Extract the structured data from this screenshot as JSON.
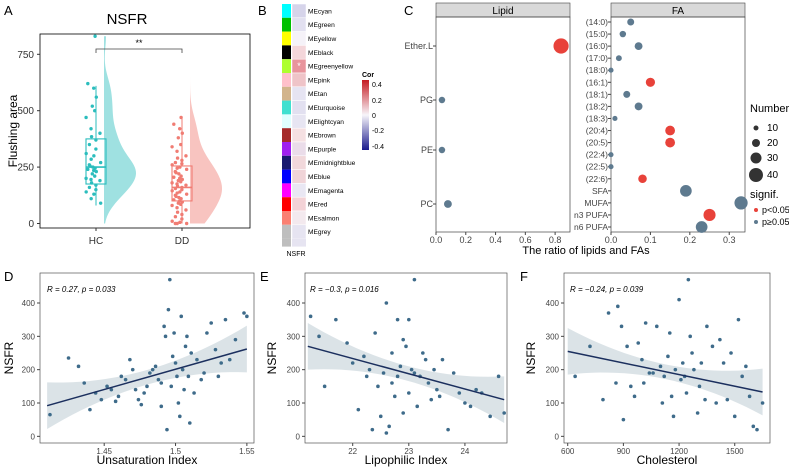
{
  "figure": {
    "panel_labels": [
      "A",
      "B",
      "C",
      "D",
      "E",
      "F"
    ],
    "panelA": {
      "title": "NSFR",
      "ylabel": "Flushing area",
      "groups": [
        "HC",
        "DD"
      ],
      "significance": "**",
      "colors": {
        "HC": "#2BBDBD",
        "DD": "#F07C73"
      }
    },
    "panelB": {
      "modules": [
        "MEcyan",
        "MEgreen",
        "MEyellow",
        "MEblack",
        "MEgreenyellow",
        "MEpink",
        "MEtan",
        "MEturquoise",
        "MElightcyan",
        "MEbrown",
        "MEpurple",
        "MEmidnightblue",
        "MEblue",
        "MEmagenta",
        "MEred",
        "MEsalmon",
        "MEgrey"
      ],
      "module_colors": [
        "#00FFFF",
        "#00C000",
        "#FFFF00",
        "#000000",
        "#ADFF2F",
        "#FFC0CB",
        "#D2B48C",
        "#40E0D0",
        "#E0FFFF",
        "#A52A2A",
        "#A020F0",
        "#191970",
        "#0000FF",
        "#FF00FF",
        "#FF0000",
        "#FA8072",
        "#BEBEBE"
      ],
      "heat_colors": [
        "#D6D4EA",
        "#E2E0F0",
        "#F5F2F8",
        "#F4D6DA",
        "#E8949C",
        "#EFC4C8",
        "#E6E4F2",
        "#E2E0F0",
        "#E7E5F2",
        "#F5E0E2",
        "#EADCE9",
        "#F1D8DB",
        "#F0D4D8",
        "#E9E7F3",
        "#F3D2D6",
        "#F3E9EE",
        "#E6E4F1"
      ],
      "star": "*",
      "xlabel": "NSFR",
      "legend_title": "Cor",
      "legend_ticks": [
        "0.4",
        "0.2",
        "0",
        "-0.2",
        "-0.4"
      ]
    },
    "panelC": {
      "facet_left": "Lipid",
      "facet_right": "FA",
      "xlabel": "The ratio of lipids and FAs",
      "x_ticks": [
        "0.0",
        "0.2",
        "0.4",
        "0.6",
        "0.8"
      ],
      "right_ticks": [
        "0.0",
        "0.1",
        "0.2",
        "0.3"
      ],
      "legend_number_title": "Number",
      "legend_number_values": [
        "10",
        "20",
        "30",
        "40"
      ],
      "legend_signif_title": "signif.",
      "legend_signif_labels": [
        "p<0.05",
        "p≥0.05"
      ]
    },
    "panelD": {
      "annotation": "R = 0.27, p = 0.033",
      "xlabel": "Unsaturation Index",
      "ylabel": "NSFR"
    },
    "panelE": {
      "annotation": "R = −0.3, p = 0.016",
      "xlabel": "Lipophilic Index",
      "ylabel": "NSFR"
    },
    "panelF": {
      "annotation": "R = −0.24, p = 0.039",
      "xlabel": "Cholesterol",
      "ylabel": "NSFR"
    }
  },
  "chart_data": [
    {
      "id": "A",
      "type": "box-violin-dot",
      "title": "NSFR",
      "ylabel": "Flushing area",
      "categories": [
        "HC",
        "DD"
      ],
      "ylim": [
        -20,
        840
      ],
      "yticks": [
        0,
        250,
        500,
        750
      ],
      "box": [
        {
          "name": "HC",
          "q1": 175,
          "median": 250,
          "q3": 375,
          "lo": 80,
          "hi": 610
        },
        {
          "name": "DD",
          "q1": 100,
          "median": 160,
          "q3": 255,
          "lo": 0,
          "hi": 470
        }
      ],
      "points": [
        {
          "name": "HC",
          "values": [
            830,
            620,
            600,
            560,
            520,
            500,
            470,
            420,
            400,
            385,
            370,
            350,
            330,
            310,
            300,
            285,
            270,
            260,
            255,
            250,
            245,
            240,
            235,
            230,
            220,
            210,
            200,
            195,
            190,
            180,
            170,
            160,
            150,
            140,
            130,
            110,
            90
          ]
        },
        {
          "name": "DD",
          "values": [
            470,
            440,
            420,
            400,
            380,
            350,
            340,
            320,
            300,
            290,
            280,
            270,
            265,
            260,
            250,
            245,
            240,
            230,
            225,
            220,
            210,
            205,
            200,
            195,
            190,
            185,
            180,
            175,
            170,
            165,
            160,
            155,
            150,
            145,
            140,
            135,
            130,
            125,
            120,
            115,
            110,
            105,
            100,
            95,
            90,
            85,
            80,
            70,
            60,
            50,
            40,
            30,
            20,
            10,
            5,
            0,
            0,
            0
          ]
        }
      ]
    },
    {
      "id": "B",
      "type": "heatmap",
      "rows": [
        "MEcyan",
        "MEgreen",
        "MEyellow",
        "MEblack",
        "MEgreenyellow",
        "MEpink",
        "MEtan",
        "MEturquoise",
        "MElightcyan",
        "MEbrown",
        "MEpurple",
        "MEmidnightblue",
        "MEblue",
        "MEmagenta",
        "MEred",
        "MEsalmon",
        "MEgrey"
      ],
      "columns": [
        "NSFR"
      ],
      "values": [
        -0.12,
        -0.08,
        0.02,
        0.1,
        0.3,
        0.15,
        -0.07,
        -0.08,
        -0.06,
        0.05,
        -0.02,
        0.08,
        0.1,
        -0.05,
        0.11,
        0.03,
        -0.06
      ],
      "zlim": [
        -0.4,
        0.4
      ]
    },
    {
      "id": "C",
      "type": "dot",
      "facets": [
        "Lipid",
        "FA"
      ],
      "xlabel": "The ratio of lipids and FAs",
      "lipid": {
        "categories": [
          "Ether.L",
          "PG",
          "PE",
          "PC"
        ],
        "x": [
          0.84,
          0.04,
          0.04,
          0.08
        ],
        "number": [
          40,
          3,
          3,
          6
        ],
        "signif": [
          "p<0.05",
          "p≥0.05",
          "p≥0.05",
          "p≥0.05"
        ],
        "xlim": [
          0,
          0.9
        ]
      },
      "fa": {
        "categories": [
          "(14:0)",
          "(15:0)",
          "(16:0)",
          "(17:0)",
          "(18:0)",
          "(16:1)",
          "(18:1)",
          "(18:2)",
          "(18:3)",
          "(20:4)",
          "(20:5)",
          "(22:4)",
          "(22:5)",
          "(22:6)",
          "SFA",
          "MUFA",
          "n3 PUFA",
          "n6 PUFA"
        ],
        "x": [
          0.05,
          0.03,
          0.07,
          0.02,
          0.0,
          0.1,
          0.04,
          0.07,
          0.01,
          0.15,
          0.15,
          0.0,
          0.0,
          0.08,
          0.19,
          0.33,
          0.25,
          0.23
        ],
        "number": [
          4,
          3,
          6,
          2,
          1,
          10,
          4,
          6,
          1,
          12,
          12,
          1,
          1,
          8,
          20,
          28,
          22,
          20
        ],
        "signif": [
          "p≥0.05",
          "p≥0.05",
          "p≥0.05",
          "p≥0.05",
          "p≥0.05",
          "p<0.05",
          "p≥0.05",
          "p≥0.05",
          "p≥0.05",
          "p<0.05",
          "p<0.05",
          "p≥0.05",
          "p≥0.05",
          "p<0.05",
          "p≥0.05",
          "p≥0.05",
          "p<0.05",
          "p≥0.05"
        ],
        "xlim": [
          0,
          0.34
        ]
      }
    },
    {
      "id": "D",
      "type": "scatter",
      "xlabel": "Unsaturation Index",
      "ylabel": "NSFR",
      "xlim": [
        1.405,
        1.555
      ],
      "ylim": [
        -20,
        490
      ],
      "xticks": [
        1.45,
        1.5,
        1.55
      ],
      "yticks": [
        0,
        100,
        200,
        300,
        400
      ],
      "fit": {
        "x": [
          1.41,
          1.55
        ],
        "y": [
          92,
          262
        ]
      },
      "x": [
        1.412,
        1.425,
        1.432,
        1.436,
        1.44,
        1.444,
        1.448,
        1.452,
        1.455,
        1.458,
        1.46,
        1.462,
        1.465,
        1.468,
        1.47,
        1.472,
        1.474,
        1.476,
        1.478,
        1.48,
        1.482,
        1.484,
        1.486,
        1.488,
        1.49,
        1.49,
        1.492,
        1.493,
        1.494,
        1.495,
        1.496,
        1.497,
        1.498,
        1.499,
        1.5,
        1.501,
        1.502,
        1.503,
        1.504,
        1.505,
        1.506,
        1.507,
        1.508,
        1.509,
        1.51,
        1.511,
        1.513,
        1.515,
        1.518,
        1.52,
        1.522,
        1.525,
        1.528,
        1.53,
        1.532,
        1.535,
        1.538,
        1.542,
        1.548,
        1.55
      ],
      "y": [
        65,
        235,
        210,
        160,
        80,
        130,
        110,
        150,
        140,
        105,
        120,
        180,
        170,
        230,
        200,
        140,
        110,
        95,
        130,
        150,
        190,
        200,
        210,
        170,
        160,
        90,
        330,
        300,
        20,
        380,
        470,
        150,
        240,
        310,
        220,
        180,
        100,
        60,
        360,
        200,
        140,
        270,
        300,
        180,
        40,
        250,
        130,
        230,
        170,
        190,
        310,
        340,
        260,
        180,
        220,
        350,
        230,
        290,
        370,
        360
      ]
    },
    {
      "id": "E",
      "type": "scatter",
      "xlabel": "Lipophilic Index",
      "ylabel": "NSFR",
      "xlim": [
        21.15,
        24.75
      ],
      "ylim": [
        -20,
        490
      ],
      "xticks": [
        22,
        23,
        24
      ],
      "yticks": [
        0,
        100,
        200,
        300,
        400
      ],
      "fit": {
        "x": [
          21.2,
          24.7
        ],
        "y": [
          270,
          110
        ]
      },
      "x": [
        21.25,
        21.4,
        21.5,
        21.7,
        21.9,
        22.0,
        22.1,
        22.2,
        22.25,
        22.3,
        22.35,
        22.4,
        22.45,
        22.5,
        22.55,
        22.6,
        22.6,
        22.65,
        22.7,
        22.7,
        22.75,
        22.8,
        22.8,
        22.85,
        22.9,
        22.9,
        22.95,
        23.0,
        23.0,
        23.05,
        23.1,
        23.1,
        23.15,
        23.2,
        23.25,
        23.3,
        23.35,
        23.4,
        23.45,
        23.5,
        23.55,
        23.6,
        23.7,
        23.8,
        23.9,
        24.0,
        24.1,
        24.2,
        24.3,
        24.45,
        24.6,
        24.7
      ],
      "y": [
        360,
        300,
        150,
        350,
        280,
        220,
        80,
        240,
        180,
        200,
        20,
        310,
        150,
        60,
        190,
        400,
        10,
        30,
        250,
        160,
        120,
        350,
        180,
        210,
        290,
        70,
        270,
        350,
        130,
        200,
        190,
        470,
        90,
        180,
        250,
        230,
        160,
        110,
        200,
        140,
        120,
        230,
        20,
        190,
        130,
        100,
        90,
        140,
        130,
        60,
        180,
        70
      ]
    },
    {
      "id": "F",
      "type": "scatter",
      "xlabel": "Cholesterol",
      "ylabel": "NSFR",
      "xlim": [
        580,
        1690
      ],
      "ylim": [
        -20,
        490
      ],
      "xticks": [
        600,
        900,
        1200,
        1500
      ],
      "yticks": [
        0,
        100,
        200,
        300,
        400
      ],
      "fit": {
        "x": [
          600,
          1650
        ],
        "y": [
          255,
          133
        ]
      },
      "x": [
        640,
        720,
        790,
        820,
        860,
        870,
        890,
        900,
        920,
        940,
        960,
        980,
        1000,
        1010,
        1020,
        1040,
        1060,
        1080,
        1100,
        1110,
        1120,
        1140,
        1150,
        1160,
        1170,
        1180,
        1200,
        1210,
        1220,
        1230,
        1240,
        1250,
        1260,
        1270,
        1280,
        1300,
        1310,
        1320,
        1340,
        1350,
        1380,
        1400,
        1420,
        1440,
        1460,
        1480,
        1500,
        1520,
        1540,
        1560,
        1580,
        1600,
        1620,
        1650
      ],
      "y": [
        180,
        270,
        110,
        370,
        160,
        390,
        330,
        50,
        270,
        150,
        120,
        280,
        230,
        160,
        340,
        190,
        190,
        330,
        210,
        100,
        180,
        240,
        310,
        120,
        60,
        200,
        410,
        170,
        220,
        180,
        130,
        470,
        300,
        250,
        200,
        70,
        150,
        220,
        110,
        330,
        270,
        100,
        290,
        220,
        110,
        250,
        60,
        350,
        180,
        210,
        120,
        30,
        20,
        100
      ]
    }
  ]
}
